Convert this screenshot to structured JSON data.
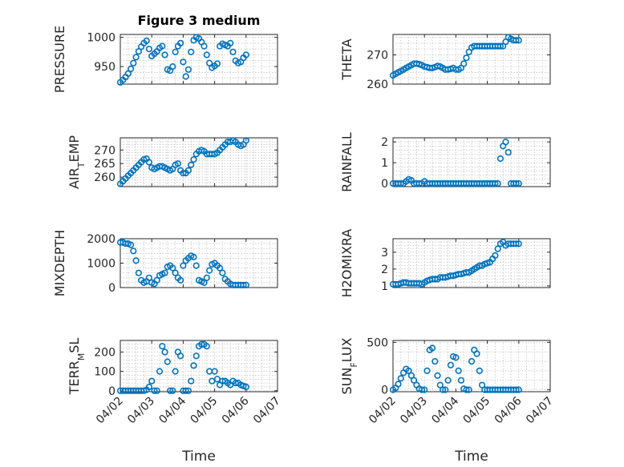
{
  "chart_data": [
    {
      "type": "scatter",
      "title": "Figure 3 medium",
      "ylabel": "PRESSURE",
      "xlabel": "",
      "xlim": [
        "04/02",
        "04/07"
      ],
      "ylim": [
        920,
        1005
      ],
      "yticks": [
        950,
        1000
      ],
      "xticks": [],
      "grid": true,
      "color": "#0072bd",
      "x": [
        "04/02 00:00",
        "04/02 02:00",
        "04/02 04:00",
        "04/02 06:00",
        "04/02 08:00",
        "04/02 10:00",
        "04/02 12:00",
        "04/02 14:00",
        "04/02 16:00",
        "04/02 18:00",
        "04/02 20:00",
        "04/02 22:00",
        "04/03 00:00",
        "04/03 02:00",
        "04/03 04:00",
        "04/03 06:00",
        "04/03 08:00",
        "04/03 10:00",
        "04/03 12:00",
        "04/03 14:00",
        "04/03 16:00",
        "04/03 18:00",
        "04/03 20:00",
        "04/03 22:00",
        "04/04 00:00",
        "04/04 02:00",
        "04/04 04:00",
        "04/04 06:00",
        "04/04 08:00",
        "04/04 10:00",
        "04/04 12:00",
        "04/04 14:00",
        "04/04 16:00",
        "04/04 18:00",
        "04/04 20:00",
        "04/04 22:00",
        "04/05 00:00",
        "04/05 02:00",
        "04/05 04:00",
        "04/05 06:00",
        "04/05 08:00",
        "04/05 10:00",
        "04/05 12:00",
        "04/05 14:00",
        "04/05 16:00",
        "04/05 18:00",
        "04/05 20:00",
        "04/05 22:00",
        "04/06 00:00"
      ],
      "y": [
        923,
        927,
        932,
        938,
        946,
        956,
        966,
        976,
        984,
        990,
        994,
        980,
        968,
        972,
        976,
        982,
        985,
        970,
        945,
        943,
        950,
        975,
        985,
        990,
        958,
        933,
        945,
        975,
        995,
        1000,
        998,
        992,
        985,
        970,
        956,
        948,
        951,
        955,
        985,
        989,
        987,
        985,
        990,
        975,
        960,
        956,
        958,
        965,
        970
      ]
    },
    {
      "type": "scatter",
      "title": "",
      "ylabel": "THETA",
      "xlabel": "",
      "xlim": [
        "04/02",
        "04/07"
      ],
      "ylim": [
        260,
        277
      ],
      "yticks": [
        260,
        270
      ],
      "xticks": [],
      "grid": true,
      "color": "#0072bd",
      "x": [
        "04/02 00:00",
        "04/02 02:00",
        "04/02 04:00",
        "04/02 06:00",
        "04/02 08:00",
        "04/02 10:00",
        "04/02 12:00",
        "04/02 14:00",
        "04/02 16:00",
        "04/02 18:00",
        "04/02 20:00",
        "04/02 22:00",
        "04/03 00:00",
        "04/03 02:00",
        "04/03 04:00",
        "04/03 06:00",
        "04/03 08:00",
        "04/03 10:00",
        "04/03 12:00",
        "04/03 14:00",
        "04/03 16:00",
        "04/03 18:00",
        "04/03 20:00",
        "04/03 22:00",
        "04/04 00:00",
        "04/04 02:00",
        "04/04 04:00",
        "04/04 06:00",
        "04/04 08:00",
        "04/04 10:00",
        "04/04 12:00",
        "04/04 14:00",
        "04/04 16:00",
        "04/04 18:00",
        "04/04 20:00",
        "04/04 22:00",
        "04/05 00:00",
        "04/05 02:00",
        "04/05 04:00",
        "04/05 06:00",
        "04/05 08:00",
        "04/05 10:00",
        "04/05 12:00",
        "04/05 14:00",
        "04/05 16:00",
        "04/05 18:00",
        "04/05 20:00",
        "04/05 22:00",
        "04/06 00:00"
      ],
      "y": [
        263,
        263.5,
        264,
        264.5,
        265,
        265.5,
        266,
        266.5,
        267,
        267,
        266.8,
        266.5,
        266,
        265.8,
        265.5,
        265.5,
        265.8,
        266.2,
        266,
        265.5,
        265,
        265,
        265.2,
        265.5,
        265,
        265,
        265.5,
        267,
        269,
        271,
        272.5,
        273,
        273,
        273,
        273,
        273,
        273,
        273,
        273,
        273,
        273,
        273,
        273,
        274.5,
        276,
        275.5,
        275,
        275,
        275
      ]
    },
    {
      "type": "scatter",
      "title": "",
      "ylabel": "AIR_TEMP",
      "xlabel": "",
      "xlim": [
        "04/02",
        "04/07"
      ],
      "ylim": [
        256.5,
        274.5
      ],
      "yticks": [
        260,
        265,
        270
      ],
      "xticks": [],
      "grid": true,
      "color": "#0072bd",
      "x": [
        "04/02 00:00",
        "04/02 02:00",
        "04/02 04:00",
        "04/02 06:00",
        "04/02 08:00",
        "04/02 10:00",
        "04/02 12:00",
        "04/02 14:00",
        "04/02 16:00",
        "04/02 18:00",
        "04/02 20:00",
        "04/02 22:00",
        "04/03 00:00",
        "04/03 02:00",
        "04/03 04:00",
        "04/03 06:00",
        "04/03 08:00",
        "04/03 10:00",
        "04/03 12:00",
        "04/03 14:00",
        "04/03 16:00",
        "04/03 18:00",
        "04/03 20:00",
        "04/03 22:00",
        "04/04 00:00",
        "04/04 02:00",
        "04/04 04:00",
        "04/04 06:00",
        "04/04 08:00",
        "04/04 10:00",
        "04/04 12:00",
        "04/04 14:00",
        "04/04 16:00",
        "04/04 18:00",
        "04/04 20:00",
        "04/04 22:00",
        "04/05 00:00",
        "04/05 02:00",
        "04/05 04:00",
        "04/05 06:00",
        "04/05 08:00",
        "04/05 10:00",
        "04/05 12:00",
        "04/05 14:00",
        "04/05 16:00",
        "04/05 18:00",
        "04/05 20:00",
        "04/05 22:00",
        "04/06 00:00"
      ],
      "y": [
        257.5,
        258.5,
        259.5,
        260.5,
        261.5,
        262.5,
        263.5,
        264.5,
        265.5,
        266.5,
        266.8,
        265.5,
        263.5,
        263,
        263.5,
        264,
        264,
        263.5,
        263,
        262.5,
        263,
        264.5,
        265,
        262.5,
        261.5,
        261.5,
        262.5,
        264.5,
        266.5,
        268.5,
        269.5,
        270,
        269.5,
        268.5,
        268.5,
        268.5,
        268.5,
        269,
        270,
        271,
        272,
        273,
        273,
        273.5,
        273,
        272,
        271.5,
        272,
        273.5
      ]
    },
    {
      "type": "scatter",
      "title": "",
      "ylabel": "RAINFALL",
      "xlabel": "",
      "xlim": [
        "04/02",
        "04/07"
      ],
      "ylim": [
        -0.15,
        2.2
      ],
      "yticks": [
        0,
        1,
        2
      ],
      "xticks": [],
      "grid": true,
      "color": "#0072bd",
      "x": [
        "04/02 00:00",
        "04/02 02:00",
        "04/02 04:00",
        "04/02 06:00",
        "04/02 08:00",
        "04/02 10:00",
        "04/02 12:00",
        "04/02 14:00",
        "04/02 16:00",
        "04/02 18:00",
        "04/02 20:00",
        "04/02 22:00",
        "04/03 00:00",
        "04/03 02:00",
        "04/03 04:00",
        "04/03 06:00",
        "04/03 08:00",
        "04/03 10:00",
        "04/03 12:00",
        "04/03 14:00",
        "04/03 16:00",
        "04/03 18:00",
        "04/03 20:00",
        "04/03 22:00",
        "04/04 00:00",
        "04/04 02:00",
        "04/04 04:00",
        "04/04 06:00",
        "04/04 08:00",
        "04/04 10:00",
        "04/04 12:00",
        "04/04 14:00",
        "04/04 16:00",
        "04/04 18:00",
        "04/04 20:00",
        "04/04 22:00",
        "04/05 00:00",
        "04/05 02:00",
        "04/05 04:00",
        "04/05 06:00",
        "04/05 08:00",
        "04/05 10:00",
        "04/05 12:00",
        "04/05 14:00",
        "04/05 16:00",
        "04/05 18:00",
        "04/05 20:00",
        "04/05 22:00",
        "04/06 00:00"
      ],
      "y": [
        0,
        0,
        0,
        0,
        0,
        0.1,
        0.2,
        0.15,
        0,
        0,
        0,
        0,
        0.1,
        0,
        0,
        0,
        0,
        0,
        0,
        0,
        0,
        0,
        0,
        0,
        0,
        0,
        0,
        0,
        0,
        0,
        0,
        0,
        0,
        0,
        0,
        0,
        0,
        0,
        0,
        0,
        0,
        1.2,
        1.8,
        2.0,
        1.5,
        0,
        0,
        0,
        0
      ]
    },
    {
      "type": "scatter",
      "title": "",
      "ylabel": "MIXDEPTH",
      "xlabel": "",
      "xlim": [
        "04/02",
        "04/07"
      ],
      "ylim": [
        0,
        2000
      ],
      "yticks": [
        0,
        1000,
        2000
      ],
      "xticks": [],
      "grid": true,
      "color": "#0072bd",
      "x": [
        "04/02 00:00",
        "04/02 02:00",
        "04/02 04:00",
        "04/02 06:00",
        "04/02 08:00",
        "04/02 10:00",
        "04/02 12:00",
        "04/02 14:00",
        "04/02 16:00",
        "04/02 18:00",
        "04/02 20:00",
        "04/02 22:00",
        "04/03 00:00",
        "04/03 02:00",
        "04/03 04:00",
        "04/03 06:00",
        "04/03 08:00",
        "04/03 10:00",
        "04/03 12:00",
        "04/03 14:00",
        "04/03 16:00",
        "04/03 18:00",
        "04/03 20:00",
        "04/03 22:00",
        "04/04 00:00",
        "04/04 02:00",
        "04/04 04:00",
        "04/04 06:00",
        "04/04 08:00",
        "04/04 10:00",
        "04/04 12:00",
        "04/04 14:00",
        "04/04 16:00",
        "04/04 18:00",
        "04/04 20:00",
        "04/04 22:00",
        "04/05 00:00",
        "04/05 02:00",
        "04/05 04:00",
        "04/05 06:00",
        "04/05 08:00",
        "04/05 10:00",
        "04/05 12:00",
        "04/05 14:00",
        "04/05 16:00",
        "04/05 18:00",
        "04/05 20:00",
        "04/05 22:00",
        "04/06 00:00"
      ],
      "y": [
        1850,
        1850,
        1800,
        1800,
        1750,
        1500,
        1100,
        600,
        300,
        200,
        250,
        400,
        200,
        150,
        300,
        500,
        550,
        600,
        850,
        900,
        800,
        600,
        400,
        300,
        900,
        1100,
        1200,
        1300,
        1250,
        900,
        300,
        250,
        200,
        400,
        700,
        950,
        1000,
        900,
        800,
        600,
        350,
        250,
        150,
        100,
        100,
        100,
        100,
        100,
        100
      ]
    },
    {
      "type": "scatter",
      "title": "",
      "ylabel": "H2OMIXRA",
      "xlabel": "",
      "xlim": [
        "04/02",
        "04/07"
      ],
      "ylim": [
        0.9,
        3.8
      ],
      "yticks": [
        1,
        2,
        3
      ],
      "xticks": [],
      "grid": true,
      "color": "#0072bd",
      "x": [
        "04/02 00:00",
        "04/02 02:00",
        "04/02 04:00",
        "04/02 06:00",
        "04/02 08:00",
        "04/02 10:00",
        "04/02 12:00",
        "04/02 14:00",
        "04/02 16:00",
        "04/02 18:00",
        "04/02 20:00",
        "04/02 22:00",
        "04/03 00:00",
        "04/03 02:00",
        "04/03 04:00",
        "04/03 06:00",
        "04/03 08:00",
        "04/03 10:00",
        "04/03 12:00",
        "04/03 14:00",
        "04/03 16:00",
        "04/03 18:00",
        "04/03 20:00",
        "04/03 22:00",
        "04/04 00:00",
        "04/04 02:00",
        "04/04 04:00",
        "04/04 06:00",
        "04/04 08:00",
        "04/04 10:00",
        "04/04 12:00",
        "04/04 14:00",
        "04/04 16:00",
        "04/04 18:00",
        "04/04 20:00",
        "04/04 22:00",
        "04/05 00:00",
        "04/05 02:00",
        "04/05 04:00",
        "04/05 06:00",
        "04/05 08:00",
        "04/05 10:00",
        "04/05 12:00",
        "04/05 14:00",
        "04/05 16:00",
        "04/05 18:00",
        "04/05 20:00",
        "04/05 22:00",
        "04/06 00:00"
      ],
      "y": [
        1.1,
        1.1,
        1.1,
        1.15,
        1.2,
        1.2,
        1.15,
        1.15,
        1.15,
        1.15,
        1.15,
        1.1,
        1.2,
        1.3,
        1.35,
        1.4,
        1.4,
        1.4,
        1.5,
        1.5,
        1.5,
        1.55,
        1.6,
        1.6,
        1.65,
        1.7,
        1.7,
        1.75,
        1.8,
        1.8,
        1.9,
        2.0,
        2.1,
        2.2,
        2.2,
        2.3,
        2.35,
        2.4,
        2.6,
        2.8,
        3.2,
        3.5,
        3.6,
        3.4,
        3.5,
        3.5,
        3.5,
        3.5,
        3.5
      ]
    },
    {
      "type": "scatter",
      "title": "",
      "ylabel": "TERR_MSL",
      "xlabel": "Time",
      "xlim": [
        "04/02",
        "04/07"
      ],
      "ylim": [
        -5,
        260
      ],
      "yticks": [
        0,
        100,
        200
      ],
      "xticks": [
        "04/02",
        "04/03",
        "04/04",
        "04/05",
        "04/06",
        "04/07"
      ],
      "grid": true,
      "color": "#0072bd",
      "x": [
        "04/02 00:00",
        "04/02 02:00",
        "04/02 04:00",
        "04/02 06:00",
        "04/02 08:00",
        "04/02 10:00",
        "04/02 12:00",
        "04/02 14:00",
        "04/02 16:00",
        "04/02 18:00",
        "04/02 20:00",
        "04/02 22:00",
        "04/03 00:00",
        "04/03 02:00",
        "04/03 04:00",
        "04/03 06:00",
        "04/03 08:00",
        "04/03 10:00",
        "04/03 12:00",
        "04/03 14:00",
        "04/03 16:00",
        "04/03 18:00",
        "04/03 20:00",
        "04/03 22:00",
        "04/04 00:00",
        "04/04 02:00",
        "04/04 04:00",
        "04/04 06:00",
        "04/04 08:00",
        "04/04 10:00",
        "04/04 12:00",
        "04/04 14:00",
        "04/04 16:00",
        "04/04 18:00",
        "04/04 20:00",
        "04/04 22:00",
        "04/05 00:00",
        "04/05 02:00",
        "04/05 04:00",
        "04/05 06:00",
        "04/05 08:00",
        "04/05 10:00",
        "04/05 12:00",
        "04/05 14:00",
        "04/05 16:00",
        "04/05 18:00",
        "04/05 20:00",
        "04/05 22:00",
        "04/06 00:00"
      ],
      "y": [
        0,
        0,
        0,
        0,
        0,
        0,
        0,
        0,
        0,
        0,
        5,
        20,
        50,
        0,
        0,
        100,
        230,
        200,
        150,
        0,
        0,
        100,
        200,
        180,
        0,
        0,
        0,
        50,
        130,
        180,
        230,
        240,
        240,
        230,
        100,
        50,
        100,
        60,
        30,
        50,
        50,
        40,
        30,
        50,
        40,
        40,
        30,
        25,
        20
      ]
    },
    {
      "type": "scatter",
      "title": "",
      "ylabel": "SUN_FLUX",
      "xlabel": "Time",
      "xlim": [
        "04/02",
        "04/07"
      ],
      "ylim": [
        -20,
        520
      ],
      "yticks": [
        0,
        500
      ],
      "xticks": [
        "04/02",
        "04/03",
        "04/04",
        "04/05",
        "04/06",
        "04/07"
      ],
      "grid": true,
      "color": "#0072bd",
      "x": [
        "04/02 00:00",
        "04/02 02:00",
        "04/02 04:00",
        "04/02 06:00",
        "04/02 08:00",
        "04/02 10:00",
        "04/02 12:00",
        "04/02 14:00",
        "04/02 16:00",
        "04/02 18:00",
        "04/02 20:00",
        "04/02 22:00",
        "04/03 00:00",
        "04/03 02:00",
        "04/03 04:00",
        "04/03 06:00",
        "04/03 08:00",
        "04/03 10:00",
        "04/03 12:00",
        "04/03 14:00",
        "04/03 16:00",
        "04/03 18:00",
        "04/03 20:00",
        "04/03 22:00",
        "04/04 00:00",
        "04/04 02:00",
        "04/04 04:00",
        "04/04 06:00",
        "04/04 08:00",
        "04/04 10:00",
        "04/04 12:00",
        "04/04 14:00",
        "04/04 16:00",
        "04/04 18:00",
        "04/04 20:00",
        "04/04 22:00",
        "04/05 00:00",
        "04/05 02:00",
        "04/05 04:00",
        "04/05 06:00",
        "04/05 08:00",
        "04/05 10:00",
        "04/05 12:00",
        "04/05 14:00",
        "04/05 16:00",
        "04/05 18:00",
        "04/05 20:00",
        "04/05 22:00",
        "04/06 00:00"
      ],
      "y": [
        0,
        20,
        60,
        120,
        180,
        220,
        200,
        150,
        100,
        50,
        10,
        0,
        0,
        200,
        420,
        440,
        300,
        150,
        50,
        0,
        0,
        100,
        260,
        350,
        340,
        200,
        100,
        10,
        0,
        0,
        300,
        420,
        380,
        200,
        50,
        0,
        0,
        0,
        0,
        0,
        0,
        0,
        0,
        0,
        0,
        0,
        0,
        0,
        0
      ]
    }
  ]
}
